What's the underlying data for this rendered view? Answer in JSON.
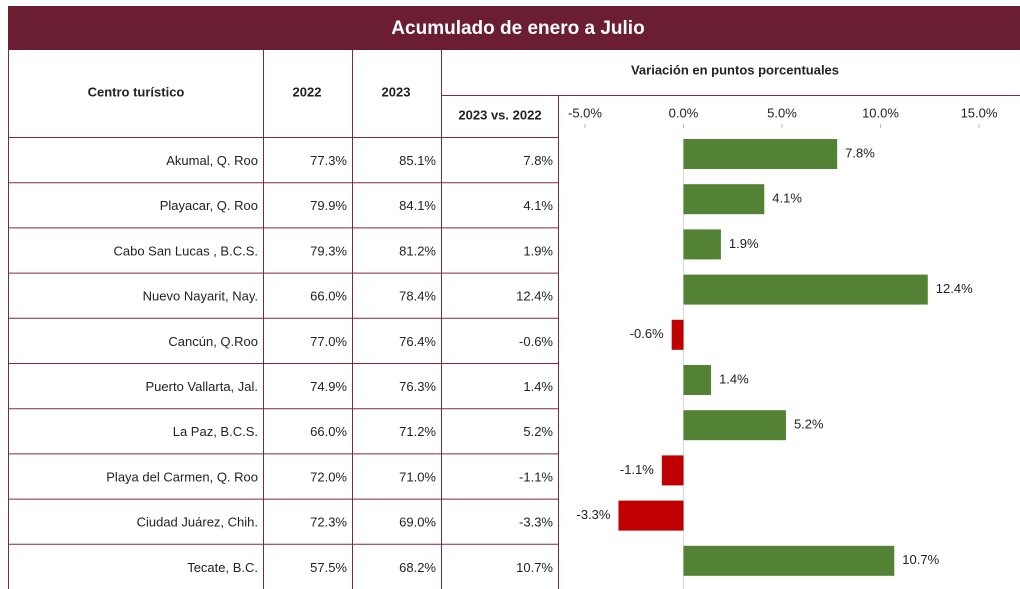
{
  "title": "Acumulado de enero a Julio",
  "table": {
    "columns": [
      "Centro turístico",
      "2022",
      "2023",
      "2023 vs. 2022"
    ],
    "rows": [
      [
        "77.3%",
        "85.1%"
      ],
      [
        "79.9%",
        "84.1%"
      ],
      [
        "79.3%",
        "81.2%"
      ],
      [
        "66.0%",
        "78.4%"
      ],
      [
        "77.0%",
        "76.4%"
      ],
      [
        "74.9%",
        "76.3%"
      ],
      [
        "66.0%",
        "71.2%"
      ],
      [
        "72.0%",
        "71.0%"
      ],
      [
        "72.3%",
        "69.0%"
      ],
      [
        "57.5%",
        "68.2%"
      ]
    ]
  },
  "chart_data": {
    "type": "bar",
    "orientation": "horizontal",
    "title": "Variación en puntos porcentuales",
    "categories": [
      "Akumal, Q. Roo",
      "Playacar, Q. Roo",
      "Cabo San Lucas , B.C.S.",
      "Nuevo Nayarit, Nay.",
      "Cancún, Q.Roo",
      "Puerto Vallarta, Jal.",
      "La Paz, B.C.S.",
      "Playa del Carmen, Q. Roo",
      "Ciudad Juárez, Chih.",
      "Tecate, B.C."
    ],
    "values": [
      7.8,
      4.1,
      1.9,
      12.4,
      -0.6,
      1.4,
      5.2,
      -1.1,
      -3.3,
      10.7
    ],
    "value_labels": [
      "7.8%",
      "4.1%",
      "1.9%",
      "12.4%",
      "-0.6%",
      "1.4%",
      "5.2%",
      "-1.1%",
      "-3.3%",
      "10.7%"
    ],
    "color_positive": "#548235",
    "color_negative": "#c00000",
    "xlim": [
      -5,
      15
    ],
    "xticks": [
      {
        "value": -5,
        "label": "-5.0%"
      },
      {
        "value": 0,
        "label": "0.0%"
      },
      {
        "value": 5,
        "label": "5.0%"
      },
      {
        "value": 10,
        "label": "10.0%"
      },
      {
        "value": 15,
        "label": "15.0%"
      }
    ]
  }
}
